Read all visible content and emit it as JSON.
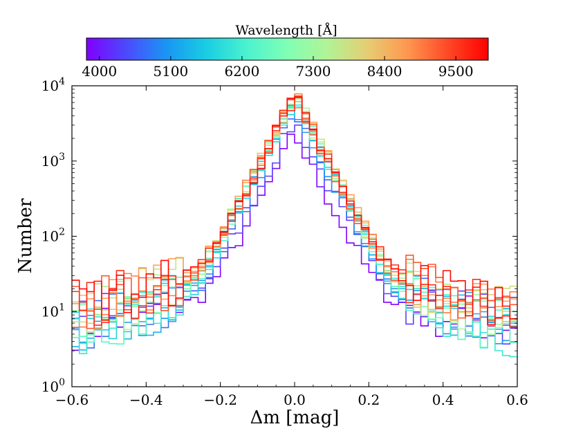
{
  "chart_data": {
    "type": "histogram-step",
    "title": "",
    "xlabel": "Δm [mag]",
    "ylabel": "Number",
    "xlim": [
      -0.6,
      0.6
    ],
    "ylim": [
      1,
      10000
    ],
    "yscale": "log",
    "x_ticks": [
      "−0.6",
      "−0.4",
      "−0.2",
      "0.0",
      "0.2",
      "0.4",
      "0.6"
    ],
    "y_tick_exponents": [
      "0",
      "1",
      "2",
      "3",
      "4"
    ],
    "y_tick_base": "10",
    "colorbar": {
      "title": "Wavelength [Å]",
      "range": [
        3800,
        10000
      ],
      "ticks": [
        "4000",
        "5100",
        "6200",
        "7300",
        "8400",
        "9500"
      ],
      "colormap": [
        "#8000ff",
        "#4c4afd",
        "#1996f3",
        "#1acee3",
        "#4cf2ce",
        "#80ffb4",
        "#b2f396",
        "#e6cd73",
        "#ff964f",
        "#ff4826",
        "#ff0000"
      ]
    },
    "bin_width": 0.02,
    "bin_start": -0.6,
    "series": [
      {
        "wavelength": 4000,
        "color": "#8000ff",
        "peak": 2300,
        "tail_exponent": 1.0,
        "floor": 9
      },
      {
        "wavelength": 4300,
        "color": "#5a3ffc",
        "peak": 3500,
        "tail_exponent": 1.0,
        "floor": 10
      },
      {
        "wavelength": 4600,
        "color": "#3a6bf7",
        "peak": 4700,
        "tail_exponent": 1.0,
        "floor": 7
      },
      {
        "wavelength": 4900,
        "color": "#2095f0",
        "peak": 5600,
        "tail_exponent": 1.0,
        "floor": 6
      },
      {
        "wavelength": 5200,
        "color": "#1bb6e8",
        "peak": 6000,
        "tail_exponent": 1.0,
        "floor": 5
      },
      {
        "wavelength": 5500,
        "color": "#22d2dc",
        "peak": 6600,
        "tail_exponent": 1.0,
        "floor": 4
      },
      {
        "wavelength": 5800,
        "color": "#3ae8ce",
        "peak": 7000,
        "tail_exponent": 1.0,
        "floor": 3
      },
      {
        "wavelength": 6100,
        "color": "#5af7bf",
        "peak": 7300,
        "tail_exponent": 1.0,
        "floor": 4
      },
      {
        "wavelength": 6400,
        "color": "#7afeae",
        "peak": 7600,
        "tail_exponent": 1.0,
        "floor": 6
      },
      {
        "wavelength": 6800,
        "color": "#a1f79a",
        "peak": 7700,
        "tail_exponent": 1.0,
        "floor": 8
      },
      {
        "wavelength": 7200,
        "color": "#c8e284",
        "peak": 7800,
        "tail_exponent": 1.0,
        "floor": 10
      },
      {
        "wavelength": 7600,
        "color": "#eac270",
        "peak": 7900,
        "tail_exponent": 1.0,
        "floor": 12
      },
      {
        "wavelength": 8000,
        "color": "#ffa05a",
        "peak": 8000,
        "tail_exponent": 1.0,
        "floor": 13
      },
      {
        "wavelength": 8400,
        "color": "#ff7c45",
        "peak": 7800,
        "tail_exponent": 1.0,
        "floor": 12
      },
      {
        "wavelength": 8800,
        "color": "#ff5532",
        "peak": 7600,
        "tail_exponent": 1.0,
        "floor": 14
      },
      {
        "wavelength": 9200,
        "color": "#ff2e1a",
        "peak": 7400,
        "tail_exponent": 1.0,
        "floor": 15
      },
      {
        "wavelength": 9600,
        "color": "#ff0a05",
        "peak": 7100,
        "tail_exponent": 1.0,
        "floor": 16
      }
    ]
  }
}
